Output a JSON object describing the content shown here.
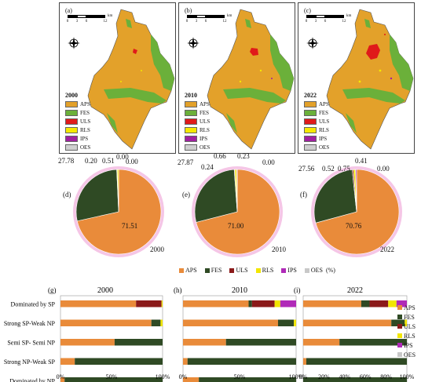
{
  "colors": {
    "APS": "#E98B3A",
    "FES": "#2F4A24",
    "ULS": "#8B1A1A",
    "RLS": "#F2E600",
    "IPS": "#B02AB8",
    "OES": "#C8C8C8",
    "map_aps": "#E3A12A",
    "map_fes": "#6BB03A",
    "map_uls": "#E01A1A",
    "map_rls": "#F5E800",
    "map_ips": "#A020A0",
    "map_oes": "#CFCFCF",
    "pie_background": "#F5C6E6"
  },
  "maps": [
    {
      "label": "(a)",
      "year": "2000"
    },
    {
      "label": "(b)",
      "year": "2010"
    },
    {
      "label": "(c)",
      "year": "2022"
    }
  ],
  "map_legend_labels": [
    "APS",
    "FES",
    "ULS",
    "RLS",
    "IPS",
    "OES"
  ],
  "scale_ticks": [
    "0",
    "3",
    "6",
    "12"
  ],
  "scale_unit": "km",
  "pies": [
    {
      "label": "(d)",
      "year": "2000",
      "values": [
        71.51,
        27.78,
        0.2,
        0.51,
        0.0,
        0.0
      ],
      "labels": {
        "fes": "27.78",
        "uls": "0.20",
        "rls": "0.51",
        "ips": "0.00",
        "oes": "0.00",
        "aps": "71.51"
      }
    },
    {
      "label": "(e)",
      "year": "2010",
      "values": [
        71.0,
        27.87,
        0.24,
        0.66,
        0.23,
        0.0
      ],
      "labels": {
        "fes": "27.87",
        "uls": "0.24",
        "rls": "0.66",
        "ips": "0.23",
        "oes": "0.00",
        "aps": "71.00"
      }
    },
    {
      "label": "(f)",
      "year": "2022",
      "values": [
        70.76,
        27.56,
        0.52,
        0.75,
        0.41,
        0.0
      ],
      "labels": {
        "fes": "27.56",
        "uls": "0.52",
        "rls": "0.75",
        "ips": "0.41",
        "oes": "0.00",
        "aps": "70.76"
      }
    }
  ],
  "pie_unit": "(%)",
  "legend_categories": [
    "APS",
    "FES",
    "ULS",
    "RLS",
    "IPS",
    "OES"
  ],
  "chart_data": [
    {
      "type": "bar",
      "title": "2000",
      "panel": "(g)",
      "categories": [
        "Dominated by SP",
        "Strong SP-Weak NP",
        "Semi SP- Semi NP",
        "Strong NP-Weak SP",
        "Dominated by NP"
      ],
      "series": [
        {
          "name": "APS",
          "values": [
            74,
            89,
            53,
            14,
            4
          ]
        },
        {
          "name": "FES",
          "values": [
            0,
            9,
            47,
            86,
            96
          ]
        },
        {
          "name": "ULS",
          "values": [
            25,
            0,
            0,
            0,
            0
          ]
        },
        {
          "name": "RLS",
          "values": [
            1,
            2,
            0,
            0,
            0
          ]
        },
        {
          "name": "IPS",
          "values": [
            0,
            0,
            0,
            0,
            0
          ]
        },
        {
          "name": "OES",
          "values": [
            0,
            0,
            0,
            0,
            0
          ]
        }
      ],
      "xlim": [
        0,
        100
      ],
      "xticks": [
        "0%",
        "50%",
        "100%"
      ]
    },
    {
      "type": "bar",
      "title": "2010",
      "panel": "(h)",
      "categories": [
        "Dominated by SP",
        "Strong SP-Weak NP",
        "Semi SP- Semi NP",
        "Strong NP-Weak SP",
        "Dominated by NP"
      ],
      "series": [
        {
          "name": "APS",
          "values": [
            58,
            84,
            38,
            4,
            14
          ]
        },
        {
          "name": "FES",
          "values": [
            3,
            14,
            62,
            96,
            86
          ]
        },
        {
          "name": "ULS",
          "values": [
            20,
            0,
            0,
            0,
            0
          ]
        },
        {
          "name": "RLS",
          "values": [
            5,
            2,
            0,
            0,
            0
          ]
        },
        {
          "name": "IPS",
          "values": [
            14,
            0,
            0,
            0,
            0
          ]
        },
        {
          "name": "OES",
          "values": [
            0,
            0,
            0,
            0,
            0
          ]
        }
      ],
      "xlim": [
        0,
        100
      ],
      "xticks": [
        "0%",
        "50%",
        "100%"
      ]
    },
    {
      "type": "bar",
      "title": "2022",
      "panel": "(i)",
      "categories": [
        "Dominated by SP",
        "Strong SP-Weak NP",
        "Semi SP- Semi NP",
        "Strong NP-Weak SP",
        "Dominated by NP"
      ],
      "series": [
        {
          "name": "APS",
          "values": [
            56,
            85,
            35,
            3,
            0
          ]
        },
        {
          "name": "FES",
          "values": [
            8,
            13,
            65,
            97,
            100
          ]
        },
        {
          "name": "ULS",
          "values": [
            18,
            0,
            0,
            0,
            0
          ]
        },
        {
          "name": "RLS",
          "values": [
            8,
            2,
            0,
            0,
            0
          ]
        },
        {
          "name": "IPS",
          "values": [
            10,
            0,
            0,
            0,
            0
          ]
        },
        {
          "name": "OES",
          "values": [
            0,
            0,
            0,
            0,
            0
          ]
        }
      ],
      "xlim": [
        0,
        100
      ],
      "xticks": [
        "0%",
        "20%",
        "40%",
        "60%",
        "80%",
        "100%"
      ]
    }
  ]
}
